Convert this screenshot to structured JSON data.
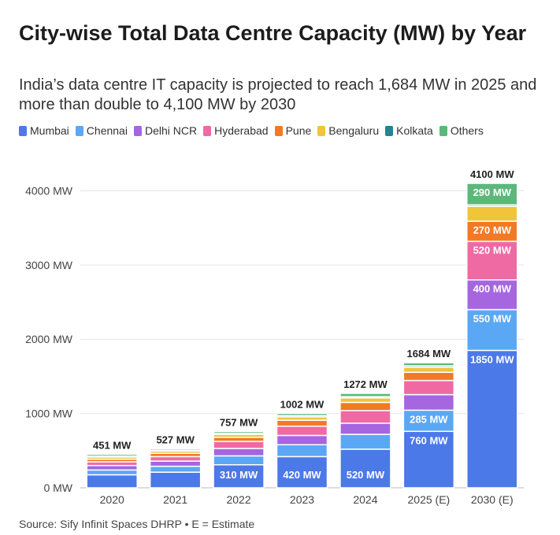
{
  "title": "City-wise Total Data Centre Capacity (MW) by Year",
  "subtitle": "India’s data centre IT capacity is projected to reach 1,684 MW in 2025 and more than double to 4,100 MW by 2030",
  "source": "Source: Sify Infinit Spaces DHRP • E = Estimate",
  "colors": {
    "Mumbai": "#4c79e8",
    "Chennai": "#5aa8f5",
    "Delhi NCR": "#a566e0",
    "Hyderabad": "#ef6aa3",
    "Pune": "#f27a25",
    "Bengaluru": "#f0c53a",
    "Kolkata": "#23868f",
    "Others": "#5cb87a"
  },
  "chart_data": {
    "type": "bar",
    "stacked": true,
    "categories": [
      "2020",
      "2021",
      "2022",
      "2023",
      "2024",
      "2025 (E)",
      "2030 (E)"
    ],
    "series": [
      {
        "name": "Mumbai",
        "values": [
          175,
          210,
          310,
          420,
          520,
          760,
          1850
        ]
      },
      {
        "name": "Chennai",
        "values": [
          65,
          80,
          120,
          160,
          200,
          285,
          550
        ]
      },
      {
        "name": "Delhi NCR",
        "values": [
          60,
          70,
          100,
          125,
          150,
          210,
          400
        ]
      },
      {
        "name": "Hyderabad",
        "values": [
          50,
          60,
          95,
          125,
          170,
          190,
          520
        ]
      },
      {
        "name": "Pune",
        "values": [
          35,
          45,
          55,
          80,
          110,
          110,
          270
        ]
      },
      {
        "name": "Bengaluru",
        "values": [
          30,
          30,
          40,
          45,
          60,
          70,
          200
        ]
      },
      {
        "name": "Kolkata",
        "values": [
          11,
          12,
          12,
          17,
          17,
          19,
          20
        ]
      },
      {
        "name": "Others",
        "values": [
          25,
          20,
          25,
          30,
          45,
          40,
          290
        ]
      }
    ],
    "totals": [
      "451 MW",
      "527 MW",
      "757 MW",
      "1002 MW",
      "1272 MW",
      "1684 MW",
      "4100 MW"
    ],
    "segment_labels": [
      {
        "category": "2022",
        "series": "Mumbai",
        "text": "310 MW"
      },
      {
        "category": "2023",
        "series": "Mumbai",
        "text": "420 MW"
      },
      {
        "category": "2024",
        "series": "Mumbai",
        "text": "520 MW"
      },
      {
        "category": "2025 (E)",
        "series": "Mumbai",
        "text": "760 MW"
      },
      {
        "category": "2025 (E)",
        "series": "Chennai",
        "text": "285 MW"
      },
      {
        "category": "2030 (E)",
        "series": "Mumbai",
        "text": "1850 MW"
      },
      {
        "category": "2030 (E)",
        "series": "Chennai",
        "text": "550 MW"
      },
      {
        "category": "2030 (E)",
        "series": "Delhi NCR",
        "text": "400 MW"
      },
      {
        "category": "2030 (E)",
        "series": "Hyderabad",
        "text": "520 MW"
      },
      {
        "category": "2030 (E)",
        "series": "Pune",
        "text": "270 MW"
      },
      {
        "category": "2030 (E)",
        "series": "Others",
        "text": "290 MW"
      }
    ],
    "y_ticks": [
      0,
      1000,
      2000,
      3000,
      4000
    ],
    "y_tick_labels": [
      "0 MW",
      "1000 MW",
      "2000 MW",
      "3000 MW",
      "4000 MW"
    ],
    "ylim": [
      0,
      4450
    ],
    "grid": true,
    "legend": "top"
  }
}
